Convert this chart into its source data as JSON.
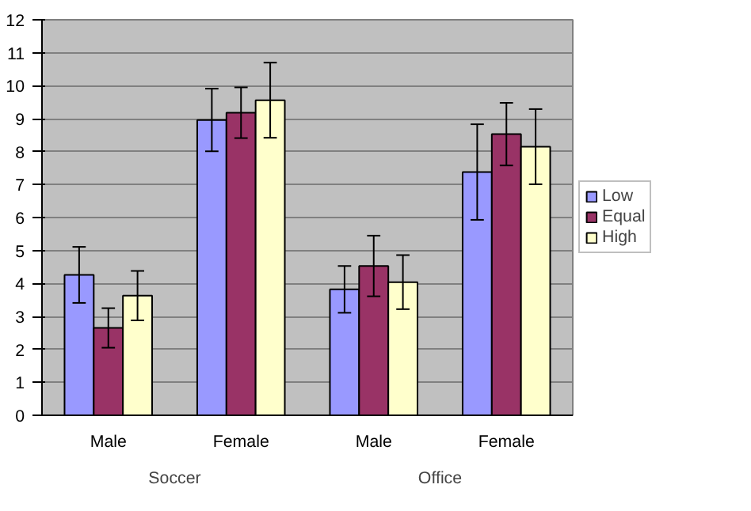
{
  "chart_data": {
    "type": "bar",
    "categories": [
      "Male",
      "Female",
      "Male",
      "Female"
    ],
    "annotations": [
      "Soccer",
      "Office"
    ],
    "ylim": [
      0,
      12
    ],
    "yticks": [
      0,
      1,
      2,
      3,
      4,
      5,
      6,
      7,
      8,
      9,
      10,
      11,
      12
    ],
    "grid": "y",
    "legend": "right",
    "series": [
      {
        "name": "Low",
        "color": "#9999ff",
        "values": [
          4.26,
          8.96,
          3.82,
          7.38
        ],
        "errors": [
          0.85,
          0.95,
          0.71,
          1.45
        ]
      },
      {
        "name": "Equal",
        "color": "#993366",
        "values": [
          2.65,
          9.18,
          4.53,
          8.53
        ],
        "errors": [
          0.6,
          0.77,
          0.92,
          0.95
        ]
      },
      {
        "name": "High",
        "color": "#ffffcc",
        "values": [
          3.63,
          9.56,
          4.04,
          8.15
        ],
        "errors": [
          0.75,
          1.14,
          0.82,
          1.14
        ]
      }
    ]
  }
}
